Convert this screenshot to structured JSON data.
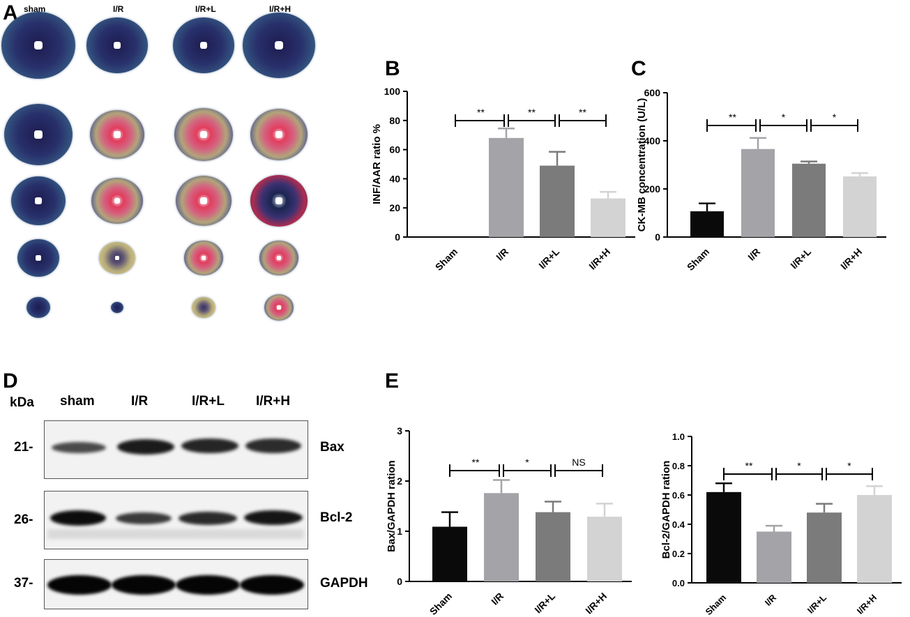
{
  "panels": {
    "A": "A",
    "B": "B",
    "C": "C",
    "D": "D",
    "E": "E"
  },
  "panel_a": {
    "headers": [
      "sham",
      "I/R",
      "I/R+L",
      "I/R+H"
    ]
  },
  "panel_d": {
    "kda_label": "kDa",
    "lanes": [
      "sham",
      "I/R",
      "I/R+L",
      "I/R+H"
    ],
    "rows": [
      {
        "mw": "21-",
        "protein": "Bax"
      },
      {
        "mw": "26-",
        "protein": "Bcl-2"
      },
      {
        "mw": "37-",
        "protein": "GAPDH"
      }
    ]
  },
  "colors": {
    "Sham": "#0a0a0a",
    "I/R": "#a3a3a8",
    "I/R+L": "#7b7b7b",
    "I/R+H": "#d3d3d3"
  },
  "chart_data": [
    {
      "id": "B",
      "type": "bar",
      "categories": [
        "Sham",
        "I/R",
        "I/R+L",
        "I/R+H"
      ],
      "values": [
        0,
        68,
        49,
        26.5
      ],
      "errors": [
        0,
        6.5,
        9.5,
        4.5
      ],
      "ylabel": "INF/AAR ratio %",
      "ylim": [
        0,
        100
      ],
      "yticks": [
        "0",
        "20",
        "40",
        "60",
        "80",
        "100"
      ],
      "sig": [
        {
          "from": 0,
          "to": 1,
          "label": "**"
        },
        {
          "from": 1,
          "to": 2,
          "label": "**"
        },
        {
          "from": 2,
          "to": 3,
          "label": "**"
        }
      ]
    },
    {
      "id": "C",
      "type": "bar",
      "categories": [
        "Sham",
        "I/R",
        "I/R+L",
        "I/R+H"
      ],
      "values": [
        107,
        366,
        305,
        252
      ],
      "errors": [
        33,
        46,
        9,
        14
      ],
      "ylabel": "CK-MB concentration (U/L)",
      "ylim": [
        0,
        600
      ],
      "yticks": [
        "0",
        "200",
        "400",
        "600"
      ],
      "sig": [
        {
          "from": 0,
          "to": 1,
          "label": "**"
        },
        {
          "from": 1,
          "to": 2,
          "label": "*"
        },
        {
          "from": 2,
          "to": 3,
          "label": "*"
        }
      ]
    },
    {
      "id": "E1",
      "type": "bar",
      "categories": [
        "Sham",
        "I/R",
        "I/R+L",
        "I/R+H"
      ],
      "values": [
        1.09,
        1.76,
        1.38,
        1.29
      ],
      "errors": [
        0.29,
        0.26,
        0.21,
        0.26
      ],
      "ylabel": "Bax/GAPDH ration",
      "ylim": [
        0,
        3
      ],
      "yticks": [
        "0",
        "1",
        "2",
        "3"
      ],
      "sig": [
        {
          "from": 0,
          "to": 1,
          "label": "**"
        },
        {
          "from": 1,
          "to": 2,
          "label": "*"
        },
        {
          "from": 2,
          "to": 3,
          "label": "NS"
        }
      ]
    },
    {
      "id": "E2",
      "type": "bar",
      "categories": [
        "Sham",
        "I/R",
        "I/R+L",
        "I/R+H"
      ],
      "values": [
        0.62,
        0.35,
        0.48,
        0.6
      ],
      "errors": [
        0.06,
        0.04,
        0.06,
        0.06
      ],
      "ylabel": "Bcl-2/GAPDH ration",
      "ylim": [
        0,
        1
      ],
      "yticks": [
        "0.0",
        "0.2",
        "0.4",
        "0.6",
        "0.8",
        "1.0"
      ],
      "sig": [
        {
          "from": 0,
          "to": 1,
          "label": "**"
        },
        {
          "from": 1,
          "to": 2,
          "label": "*"
        },
        {
          "from": 2,
          "to": 3,
          "label": "*"
        }
      ]
    }
  ]
}
